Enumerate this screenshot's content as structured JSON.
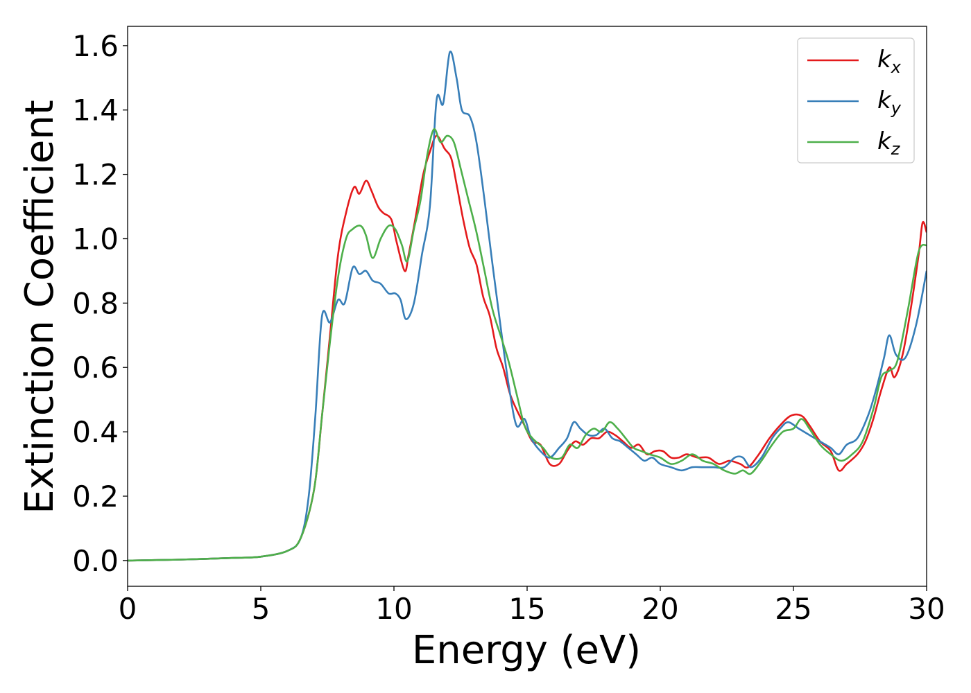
{
  "chart_data": {
    "type": "line",
    "xlabel": "Energy (eV)",
    "ylabel": "Extinction Coefficient",
    "xlim": [
      0,
      30
    ],
    "ylim": [
      -0.08,
      1.66
    ],
    "x_ticks": [
      "0",
      "5",
      "10",
      "15",
      "20",
      "25",
      "30"
    ],
    "y_ticks": [
      "0.0",
      "0.2",
      "0.4",
      "0.6",
      "0.8",
      "1.0",
      "1.2",
      "1.4",
      "1.6"
    ],
    "grid": false,
    "legend_position": "top-right",
    "series": [
      {
        "name": "k",
        "subscript": "x",
        "color": "#e41a1c",
        "points": [
          [
            0,
            0
          ],
          [
            2,
            0.003
          ],
          [
            4,
            0.008
          ],
          [
            5,
            0.012
          ],
          [
            6,
            0.03
          ],
          [
            6.5,
            0.07
          ],
          [
            7,
            0.22
          ],
          [
            7.3,
            0.45
          ],
          [
            7.6,
            0.7
          ],
          [
            7.9,
            0.95
          ],
          [
            8.2,
            1.08
          ],
          [
            8.5,
            1.16
          ],
          [
            8.7,
            1.14
          ],
          [
            8.95,
            1.18
          ],
          [
            9.15,
            1.15
          ],
          [
            9.4,
            1.1
          ],
          [
            9.6,
            1.08
          ],
          [
            9.9,
            1.06
          ],
          [
            10.1,
            0.99
          ],
          [
            10.4,
            0.9
          ],
          [
            10.55,
            0.95
          ],
          [
            10.8,
            1.06
          ],
          [
            11.1,
            1.2
          ],
          [
            11.35,
            1.27
          ],
          [
            11.6,
            1.32
          ],
          [
            11.9,
            1.28
          ],
          [
            12.15,
            1.25
          ],
          [
            12.35,
            1.17
          ],
          [
            12.6,
            1.06
          ],
          [
            12.85,
            0.97
          ],
          [
            13.1,
            0.92
          ],
          [
            13.35,
            0.82
          ],
          [
            13.6,
            0.76
          ],
          [
            13.85,
            0.66
          ],
          [
            14.1,
            0.6
          ],
          [
            14.35,
            0.52
          ],
          [
            14.6,
            0.47
          ],
          [
            14.9,
            0.42
          ],
          [
            15.2,
            0.37
          ],
          [
            15.5,
            0.36
          ],
          [
            15.85,
            0.3
          ],
          [
            16.2,
            0.3
          ],
          [
            16.5,
            0.34
          ],
          [
            16.8,
            0.37
          ],
          [
            17.1,
            0.36
          ],
          [
            17.4,
            0.38
          ],
          [
            17.7,
            0.38
          ],
          [
            18.0,
            0.4
          ],
          [
            18.3,
            0.39
          ],
          [
            18.6,
            0.37
          ],
          [
            18.9,
            0.35
          ],
          [
            19.2,
            0.36
          ],
          [
            19.5,
            0.33
          ],
          [
            19.8,
            0.34
          ],
          [
            20.1,
            0.34
          ],
          [
            20.4,
            0.32
          ],
          [
            20.7,
            0.32
          ],
          [
            21.0,
            0.33
          ],
          [
            21.4,
            0.32
          ],
          [
            21.8,
            0.32
          ],
          [
            22.2,
            0.3
          ],
          [
            22.6,
            0.31
          ],
          [
            23.0,
            0.3
          ],
          [
            23.3,
            0.29
          ],
          [
            23.7,
            0.33
          ],
          [
            24.1,
            0.38
          ],
          [
            24.5,
            0.42
          ],
          [
            24.9,
            0.45
          ],
          [
            25.3,
            0.45
          ],
          [
            25.6,
            0.42
          ],
          [
            26.0,
            0.37
          ],
          [
            26.4,
            0.34
          ],
          [
            26.7,
            0.28
          ],
          [
            27.0,
            0.3
          ],
          [
            27.4,
            0.33
          ],
          [
            27.7,
            0.37
          ],
          [
            28.0,
            0.44
          ],
          [
            28.3,
            0.53
          ],
          [
            28.6,
            0.6
          ],
          [
            28.8,
            0.57
          ],
          [
            29.1,
            0.64
          ],
          [
            29.4,
            0.78
          ],
          [
            29.7,
            0.95
          ],
          [
            29.85,
            1.05
          ],
          [
            30.0,
            1.02
          ]
        ]
      },
      {
        "name": "k",
        "subscript": "y",
        "color": "#377eb8",
        "points": [
          [
            0,
            0
          ],
          [
            2,
            0.003
          ],
          [
            4,
            0.008
          ],
          [
            5,
            0.012
          ],
          [
            6,
            0.03
          ],
          [
            6.5,
            0.07
          ],
          [
            6.8,
            0.2
          ],
          [
            7.05,
            0.45
          ],
          [
            7.3,
            0.76
          ],
          [
            7.6,
            0.74
          ],
          [
            7.9,
            0.81
          ],
          [
            8.15,
            0.8
          ],
          [
            8.45,
            0.91
          ],
          [
            8.7,
            0.89
          ],
          [
            8.95,
            0.9
          ],
          [
            9.2,
            0.87
          ],
          [
            9.5,
            0.86
          ],
          [
            9.8,
            0.83
          ],
          [
            10.05,
            0.83
          ],
          [
            10.25,
            0.81
          ],
          [
            10.45,
            0.75
          ],
          [
            10.75,
            0.8
          ],
          [
            11.05,
            0.95
          ],
          [
            11.35,
            1.1
          ],
          [
            11.6,
            1.43
          ],
          [
            11.85,
            1.42
          ],
          [
            12.1,
            1.58
          ],
          [
            12.35,
            1.5
          ],
          [
            12.55,
            1.4
          ],
          [
            12.85,
            1.38
          ],
          [
            13.1,
            1.3
          ],
          [
            13.4,
            1.12
          ],
          [
            13.7,
            0.92
          ],
          [
            14.0,
            0.73
          ],
          [
            14.3,
            0.55
          ],
          [
            14.6,
            0.42
          ],
          [
            14.9,
            0.44
          ],
          [
            15.15,
            0.38
          ],
          [
            15.5,
            0.34
          ],
          [
            15.85,
            0.32
          ],
          [
            16.2,
            0.35
          ],
          [
            16.5,
            0.38
          ],
          [
            16.75,
            0.43
          ],
          [
            17.0,
            0.41
          ],
          [
            17.3,
            0.39
          ],
          [
            17.6,
            0.39
          ],
          [
            17.9,
            0.41
          ],
          [
            18.2,
            0.38
          ],
          [
            18.5,
            0.37
          ],
          [
            18.8,
            0.35
          ],
          [
            19.1,
            0.33
          ],
          [
            19.4,
            0.31
          ],
          [
            19.7,
            0.32
          ],
          [
            20.0,
            0.3
          ],
          [
            20.4,
            0.29
          ],
          [
            20.8,
            0.28
          ],
          [
            21.2,
            0.29
          ],
          [
            21.6,
            0.29
          ],
          [
            22.0,
            0.29
          ],
          [
            22.4,
            0.29
          ],
          [
            22.8,
            0.32
          ],
          [
            23.1,
            0.32
          ],
          [
            23.4,
            0.29
          ],
          [
            23.8,
            0.32
          ],
          [
            24.2,
            0.38
          ],
          [
            24.5,
            0.41
          ],
          [
            24.8,
            0.43
          ],
          [
            25.2,
            0.41
          ],
          [
            25.6,
            0.39
          ],
          [
            26.0,
            0.37
          ],
          [
            26.4,
            0.35
          ],
          [
            26.7,
            0.33
          ],
          [
            27.0,
            0.36
          ],
          [
            27.4,
            0.38
          ],
          [
            27.8,
            0.45
          ],
          [
            28.1,
            0.53
          ],
          [
            28.4,
            0.63
          ],
          [
            28.6,
            0.7
          ],
          [
            28.85,
            0.64
          ],
          [
            29.2,
            0.63
          ],
          [
            29.6,
            0.73
          ],
          [
            30.0,
            0.9
          ]
        ]
      },
      {
        "name": "k",
        "subscript": "z",
        "color": "#4daf4a",
        "points": [
          [
            0,
            0
          ],
          [
            2,
            0.003
          ],
          [
            4,
            0.008
          ],
          [
            5,
            0.012
          ],
          [
            6,
            0.03
          ],
          [
            6.5,
            0.07
          ],
          [
            7,
            0.22
          ],
          [
            7.3,
            0.45
          ],
          [
            7.6,
            0.68
          ],
          [
            7.9,
            0.88
          ],
          [
            8.2,
            1.0
          ],
          [
            8.45,
            1.03
          ],
          [
            8.75,
            1.04
          ],
          [
            8.95,
            1.01
          ],
          [
            9.2,
            0.94
          ],
          [
            9.5,
            1.0
          ],
          [
            9.8,
            1.04
          ],
          [
            10.05,
            1.03
          ],
          [
            10.3,
            0.98
          ],
          [
            10.5,
            0.93
          ],
          [
            10.75,
            1.03
          ],
          [
            11.0,
            1.12
          ],
          [
            11.25,
            1.26
          ],
          [
            11.5,
            1.34
          ],
          [
            11.75,
            1.3
          ],
          [
            12.0,
            1.32
          ],
          [
            12.25,
            1.3
          ],
          [
            12.5,
            1.22
          ],
          [
            12.8,
            1.12
          ],
          [
            13.1,
            1.02
          ],
          [
            13.4,
            0.9
          ],
          [
            13.7,
            0.78
          ],
          [
            14.0,
            0.7
          ],
          [
            14.3,
            0.62
          ],
          [
            14.6,
            0.52
          ],
          [
            14.9,
            0.42
          ],
          [
            15.2,
            0.38
          ],
          [
            15.6,
            0.35
          ],
          [
            15.9,
            0.32
          ],
          [
            16.3,
            0.32
          ],
          [
            16.6,
            0.36
          ],
          [
            16.9,
            0.35
          ],
          [
            17.2,
            0.39
          ],
          [
            17.5,
            0.41
          ],
          [
            17.8,
            0.4
          ],
          [
            18.1,
            0.43
          ],
          [
            18.4,
            0.41
          ],
          [
            18.7,
            0.38
          ],
          [
            19.0,
            0.35
          ],
          [
            19.3,
            0.34
          ],
          [
            19.6,
            0.33
          ],
          [
            20.0,
            0.32
          ],
          [
            20.4,
            0.3
          ],
          [
            20.8,
            0.31
          ],
          [
            21.2,
            0.33
          ],
          [
            21.6,
            0.31
          ],
          [
            22.0,
            0.3
          ],
          [
            22.4,
            0.28
          ],
          [
            22.8,
            0.27
          ],
          [
            23.1,
            0.28
          ],
          [
            23.4,
            0.27
          ],
          [
            23.8,
            0.31
          ],
          [
            24.2,
            0.36
          ],
          [
            24.6,
            0.4
          ],
          [
            25.0,
            0.41
          ],
          [
            25.3,
            0.44
          ],
          [
            25.6,
            0.41
          ],
          [
            26.0,
            0.36
          ],
          [
            26.4,
            0.33
          ],
          [
            26.8,
            0.31
          ],
          [
            27.2,
            0.33
          ],
          [
            27.6,
            0.37
          ],
          [
            28.0,
            0.47
          ],
          [
            28.3,
            0.57
          ],
          [
            28.6,
            0.59
          ],
          [
            28.9,
            0.62
          ],
          [
            29.3,
            0.78
          ],
          [
            29.7,
            0.96
          ],
          [
            30.0,
            0.98
          ]
        ]
      }
    ]
  }
}
